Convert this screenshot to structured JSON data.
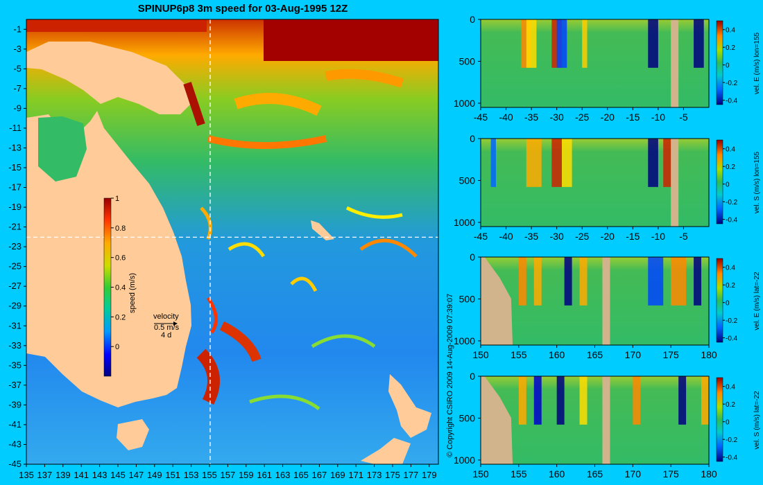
{
  "title": "SPINUP6p8 3m speed for 03-Aug-1995 12Z",
  "copyright": "© Copyright CSIRO 2009   14-Aug-2009 07:39:07",
  "colors": {
    "background": "#00ccff",
    "land": "#ffcc99",
    "section_land": "#d2b48c",
    "crosshair": "#ffffff"
  },
  "chart_data": [
    {
      "type": "heatmap",
      "name": "map",
      "xlabel": "",
      "ylabel": "",
      "x_ticks": [
        "135",
        "137",
        "139",
        "141",
        "143",
        "145",
        "147",
        "149",
        "151",
        "153",
        "155",
        "157",
        "159",
        "161",
        "163",
        "165",
        "167",
        "169",
        "171",
        "173",
        "175",
        "177",
        "179"
      ],
      "y_ticks": [
        "-1",
        "-3",
        "-5",
        "-7",
        "-9",
        "-11",
        "-13",
        "-15",
        "-17",
        "-19",
        "-21",
        "-23",
        "-25",
        "-27",
        "-29",
        "-31",
        "-33",
        "-35",
        "-37",
        "-39",
        "-41",
        "-43",
        "-45"
      ],
      "xlim": [
        135,
        180
      ],
      "ylim": [
        -45,
        0
      ],
      "crosshair": {
        "lon": 155,
        "lat": -22
      },
      "colorbar": {
        "label": "speed (m/s)",
        "range": [
          -0.2,
          1
        ],
        "ticks": [
          "1",
          "0.8",
          "0.6",
          "0.4",
          "0.2",
          "0"
        ]
      },
      "velocity_legend": {
        "title": "velocity",
        "scale": "0.5 m/s",
        "duration": "4 d"
      }
    },
    {
      "type": "heatmap",
      "name": "vel-E-lon155",
      "colorbar_label": "vel. E (m/s) lon=155",
      "x_ticks": [
        "-45",
        "-40",
        "-35",
        "-30",
        "-25",
        "-20",
        "-15",
        "-10",
        "-5"
      ],
      "y_ticks": [
        "0",
        "500",
        "1000"
      ],
      "xlim": [
        -45,
        0
      ],
      "ylim": [
        1050,
        0
      ],
      "colorbar_ticks": [
        "0.4",
        "0.2",
        "0",
        "-0.2",
        "-0.4"
      ]
    },
    {
      "type": "heatmap",
      "name": "vel-S-lon155",
      "colorbar_label": "vel. S (m/s) lon=155",
      "x_ticks": [
        "-45",
        "-40",
        "-35",
        "-30",
        "-25",
        "-20",
        "-15",
        "-10",
        "-5"
      ],
      "y_ticks": [
        "0",
        "500",
        "1000"
      ],
      "xlim": [
        -45,
        0
      ],
      "ylim": [
        1050,
        0
      ],
      "colorbar_ticks": [
        "0.4",
        "0.2",
        "0",
        "-0.2",
        "-0.4"
      ]
    },
    {
      "type": "heatmap",
      "name": "vel-E-lat-22",
      "colorbar_label": "vel. E (m/s) lat=-22",
      "x_ticks": [
        "150",
        "155",
        "160",
        "165",
        "170",
        "175",
        "180"
      ],
      "y_ticks": [
        "0",
        "500",
        "1000"
      ],
      "xlim": [
        150,
        180
      ],
      "ylim": [
        1050,
        0
      ],
      "colorbar_ticks": [
        "0.4",
        "0.2",
        "0",
        "-0.2",
        "-0.4"
      ]
    },
    {
      "type": "heatmap",
      "name": "vel-S-lat-22",
      "colorbar_label": "vel. S (m/s) lat=-22",
      "x_ticks": [
        "150",
        "155",
        "160",
        "165",
        "170",
        "175",
        "180"
      ],
      "y_ticks": [
        "0",
        "500",
        "1000"
      ],
      "xlim": [
        150,
        180
      ],
      "ylim": [
        1050,
        0
      ],
      "colorbar_ticks": [
        "0.4",
        "0.2",
        "0",
        "-0.2",
        "-0.4"
      ]
    }
  ]
}
